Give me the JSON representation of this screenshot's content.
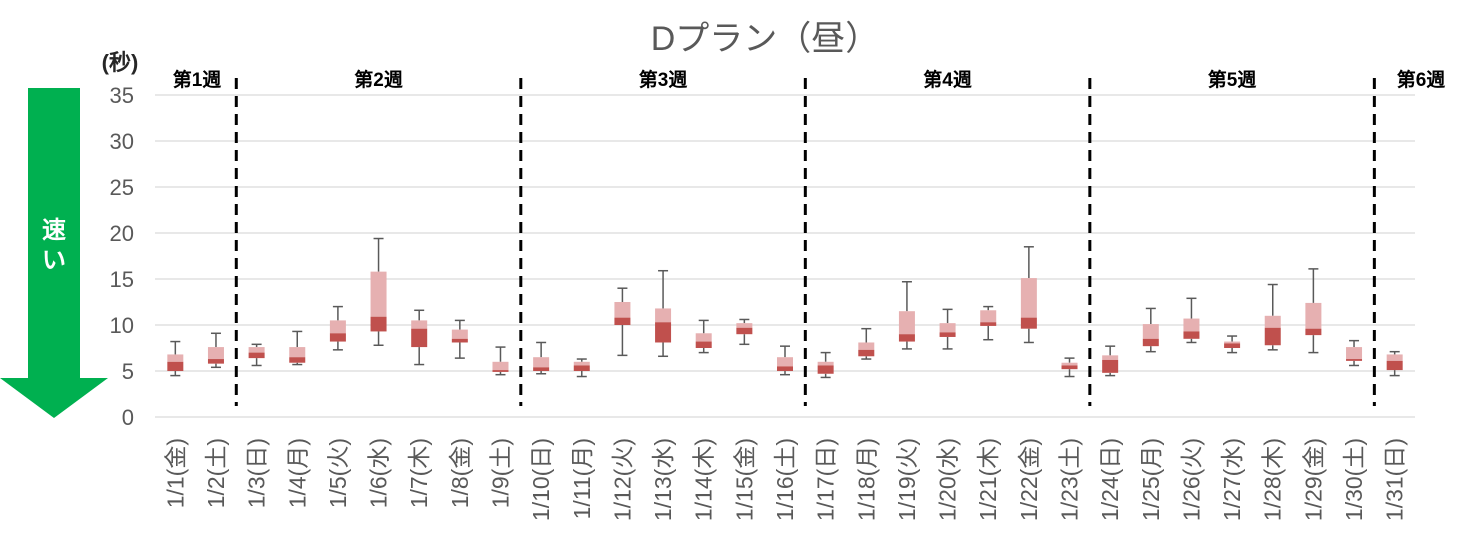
{
  "chart_data": {
    "type": "box",
    "title": "Dプラン（昼）",
    "yunit": "(秒)",
    "ylim": [
      0,
      35
    ],
    "yticks": [
      0,
      5,
      10,
      15,
      20,
      25,
      30,
      35
    ],
    "grid": true,
    "speed_arrow": {
      "label": "速い",
      "direction": "down",
      "color": "#00b050"
    },
    "colors": {
      "upper_box": "#e6b0b1",
      "lower_box": "#c0504d",
      "whisker": "#595959",
      "grid": "#d9d9d9",
      "divider": "#000000"
    },
    "weeks": [
      {
        "label": "第1週",
        "start": 0,
        "end": 1
      },
      {
        "label": "第2週",
        "start": 2,
        "end": 8
      },
      {
        "label": "第3週",
        "start": 9,
        "end": 15
      },
      {
        "label": "第4週",
        "start": 16,
        "end": 22
      },
      {
        "label": "第5週",
        "start": 23,
        "end": 29
      },
      {
        "label": "第6週",
        "start": 30,
        "end": 30
      }
    ],
    "categories": [
      "1/1(金)",
      "1/2(土)",
      "1/3(日)",
      "1/4(月)",
      "1/5(火)",
      "1/6(水)",
      "1/7(木)",
      "1/8(金)",
      "1/9(土)",
      "1/10(日)",
      "1/11(月)",
      "1/12(火)",
      "1/13(水)",
      "1/14(木)",
      "1/15(金)",
      "1/16(土)",
      "1/17(日)",
      "1/18(月)",
      "1/19(火)",
      "1/20(水)",
      "1/21(木)",
      "1/22(金)",
      "1/23(土)",
      "1/24(日)",
      "1/25(月)",
      "1/26(火)",
      "1/27(水)",
      "1/28(木)",
      "1/29(金)",
      "1/30(土)",
      "1/31(日)"
    ],
    "boxes": [
      {
        "min": 4.5,
        "q1": 5.0,
        "median": 6.0,
        "q3": 6.8,
        "max": 8.2
      },
      {
        "min": 5.4,
        "q1": 5.8,
        "median": 6.3,
        "q3": 7.6,
        "max": 9.1
      },
      {
        "min": 5.6,
        "q1": 6.4,
        "median": 7.0,
        "q3": 7.6,
        "max": 7.9
      },
      {
        "min": 5.7,
        "q1": 5.9,
        "median": 6.5,
        "q3": 7.6,
        "max": 9.3
      },
      {
        "min": 7.3,
        "q1": 8.2,
        "median": 9.1,
        "q3": 10.5,
        "max": 12.0
      },
      {
        "min": 7.8,
        "q1": 9.3,
        "median": 10.9,
        "q3": 15.8,
        "max": 19.4
      },
      {
        "min": 5.7,
        "q1": 7.6,
        "median": 9.6,
        "q3": 10.5,
        "max": 11.6
      },
      {
        "min": 6.4,
        "q1": 8.1,
        "median": 8.5,
        "q3": 9.5,
        "max": 10.5
      },
      {
        "min": 4.6,
        "q1": 4.9,
        "median": 5.1,
        "q3": 6.0,
        "max": 7.6
      },
      {
        "min": 4.7,
        "q1": 5.0,
        "median": 5.4,
        "q3": 6.5,
        "max": 8.1
      },
      {
        "min": 4.4,
        "q1": 5.0,
        "median": 5.6,
        "q3": 6.0,
        "max": 6.3
      },
      {
        "min": 6.7,
        "q1": 10.0,
        "median": 10.8,
        "q3": 12.5,
        "max": 14.0
      },
      {
        "min": 6.6,
        "q1": 8.1,
        "median": 10.3,
        "q3": 11.8,
        "max": 15.9
      },
      {
        "min": 7.0,
        "q1": 7.5,
        "median": 8.2,
        "q3": 9.1,
        "max": 10.5
      },
      {
        "min": 7.9,
        "q1": 9.0,
        "median": 9.7,
        "q3": 10.2,
        "max": 10.6
      },
      {
        "min": 4.6,
        "q1": 5.0,
        "median": 5.5,
        "q3": 6.5,
        "max": 7.7
      },
      {
        "min": 4.3,
        "q1": 4.7,
        "median": 5.6,
        "q3": 6.0,
        "max": 7.0
      },
      {
        "min": 6.3,
        "q1": 6.6,
        "median": 7.3,
        "q3": 8.1,
        "max": 9.6
      },
      {
        "min": 7.4,
        "q1": 8.2,
        "median": 9.0,
        "q3": 11.5,
        "max": 14.7
      },
      {
        "min": 7.4,
        "q1": 8.7,
        "median": 9.2,
        "q3": 10.2,
        "max": 11.7
      },
      {
        "min": 8.4,
        "q1": 9.9,
        "median": 10.3,
        "q3": 11.6,
        "max": 12.0
      },
      {
        "min": 8.1,
        "q1": 9.6,
        "median": 10.8,
        "q3": 15.1,
        "max": 18.5
      },
      {
        "min": 4.4,
        "q1": 5.2,
        "median": 5.6,
        "q3": 5.9,
        "max": 6.4
      },
      {
        "min": 4.5,
        "q1": 4.8,
        "median": 6.2,
        "q3": 6.7,
        "max": 7.7
      },
      {
        "min": 7.1,
        "q1": 7.7,
        "median": 8.5,
        "q3": 10.1,
        "max": 11.8
      },
      {
        "min": 8.1,
        "q1": 8.5,
        "median": 9.3,
        "q3": 10.7,
        "max": 12.9
      },
      {
        "min": 7.0,
        "q1": 7.5,
        "median": 8.0,
        "q3": 8.2,
        "max": 8.8
      },
      {
        "min": 7.3,
        "q1": 7.8,
        "median": 9.7,
        "q3": 11.0,
        "max": 14.4
      },
      {
        "min": 7.0,
        "q1": 8.9,
        "median": 9.6,
        "q3": 12.4,
        "max": 16.1
      },
      {
        "min": 5.6,
        "q1": 6.1,
        "median": 6.3,
        "q3": 7.6,
        "max": 8.3
      },
      {
        "min": 4.5,
        "q1": 5.1,
        "median": 6.1,
        "q3": 6.8,
        "max": 7.1
      }
    ]
  }
}
